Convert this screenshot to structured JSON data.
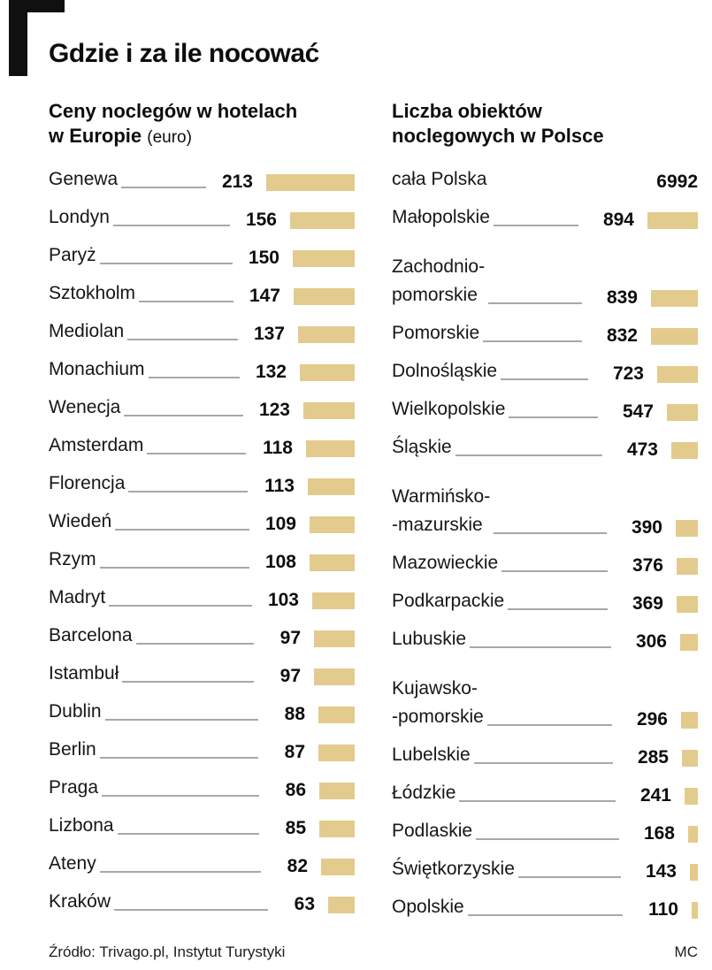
{
  "page": {
    "title": "Gdzie i za ile nocować",
    "source": "Źródło: Trivago.pl, Instytut Turystyki",
    "credit": "MC",
    "bar_color": "#e3cb8d"
  },
  "chart_data": [
    {
      "type": "bar",
      "title": "Ceny noclegów w hotelach\nw Europie",
      "note": "(euro)",
      "unit": "euro",
      "legend_position": "none",
      "grid": false,
      "items": [
        {
          "label": "Genewa",
          "value": 213
        },
        {
          "label": "Londyn",
          "value": 156
        },
        {
          "label": "Paryż",
          "value": 150
        },
        {
          "label": "Sztokholm",
          "value": 147
        },
        {
          "label": "Mediolan",
          "value": 137
        },
        {
          "label": "Monachium",
          "value": 132
        },
        {
          "label": "Wenecja",
          "value": 123
        },
        {
          "label": "Amsterdam",
          "value": 118
        },
        {
          "label": "Florencja",
          "value": 113
        },
        {
          "label": "Wiedeń",
          "value": 109
        },
        {
          "label": "Rzym",
          "value": 108
        },
        {
          "label": "Madryt",
          "value": 103
        },
        {
          "label": "Barcelona",
          "value": 97
        },
        {
          "label": "Istambuł",
          "value": 97
        },
        {
          "label": "Dublin",
          "value": 88
        },
        {
          "label": "Berlin",
          "value": 87
        },
        {
          "label": "Praga",
          "value": 86
        },
        {
          "label": "Lizbona",
          "value": 85
        },
        {
          "label": "Ateny",
          "value": 82
        },
        {
          "label": "Kraków",
          "value": 63
        }
      ]
    },
    {
      "type": "bar",
      "title": "Liczba obiektów\nnoclegowych w Polsce",
      "legend_position": "none",
      "grid": false,
      "items": [
        {
          "label": "cała Polska",
          "value": 6992,
          "bar": false
        },
        {
          "label": "Małopolskie",
          "value": 894
        },
        {
          "label": "Zachodnio-\npomorskie",
          "value": 839
        },
        {
          "label": "Pomorskie",
          "value": 832
        },
        {
          "label": "Dolnośląskie",
          "value": 723
        },
        {
          "label": "Wielkopolskie",
          "value": 547
        },
        {
          "label": "Śląskie",
          "value": 473
        },
        {
          "label": "Warmińsko-\n-mazurskie",
          "value": 390
        },
        {
          "label": "Mazowieckie",
          "value": 376
        },
        {
          "label": "Podkarpackie",
          "value": 369
        },
        {
          "label": "Lubuskie",
          "value": 306
        },
        {
          "label": "Kujawsko-\n-pomorskie",
          "value": 296
        },
        {
          "label": "Lubelskie",
          "value": 285
        },
        {
          "label": "Łódzkie",
          "value": 241
        },
        {
          "label": "Podlaskie",
          "value": 168
        },
        {
          "label": "Świętkorzyskie",
          "value": 143
        },
        {
          "label": "Opolskie",
          "value": 110
        }
      ]
    }
  ]
}
